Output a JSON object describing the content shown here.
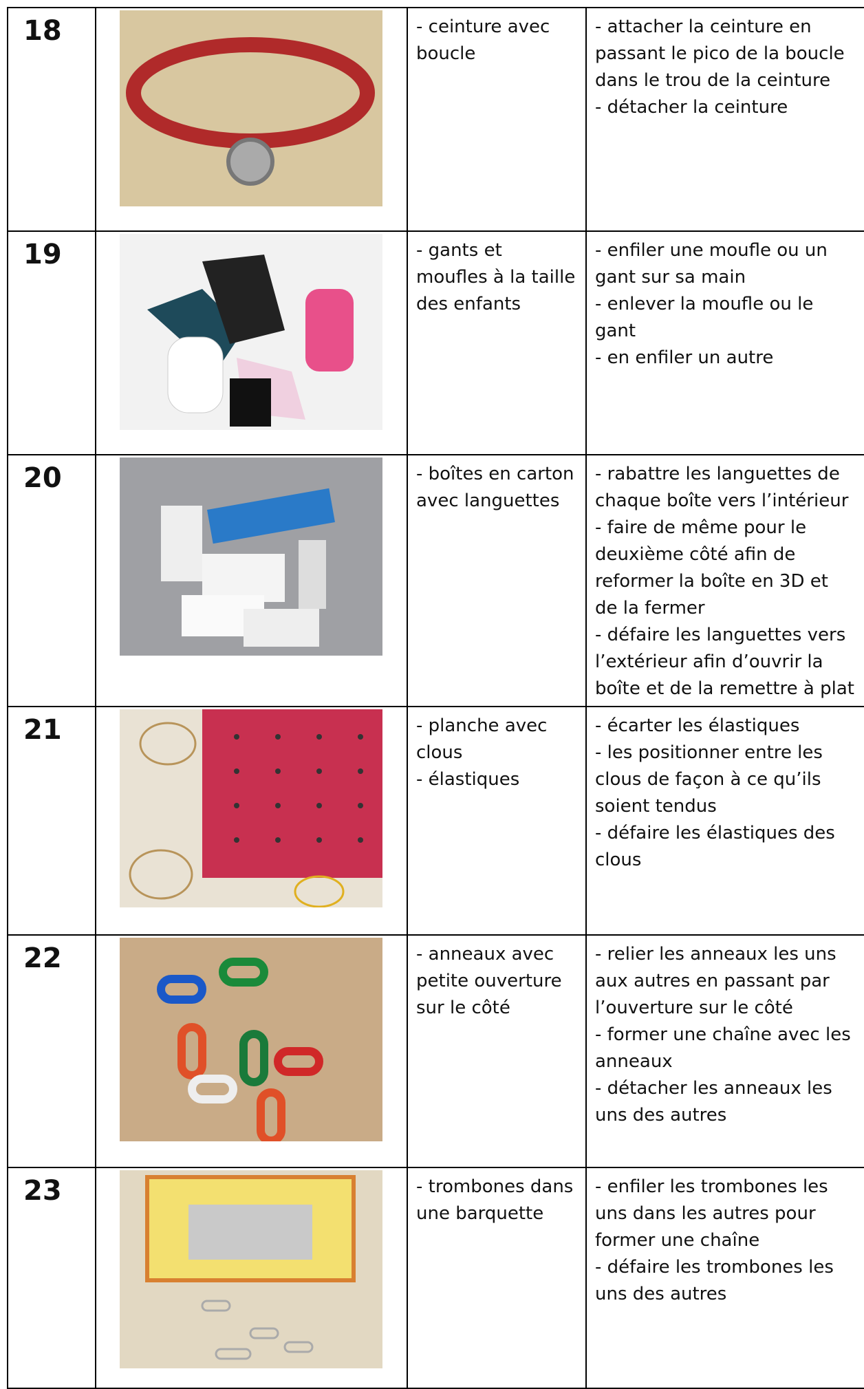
{
  "table": {
    "rows": [
      {
        "number": "18",
        "items": [
          "- ceinture avec boucle"
        ],
        "actions": [
          "- attacher la ceinture en passant le pico de la boucle dans le trou de la ceinture",
          "- détacher la ceinture"
        ]
      },
      {
        "number": "19",
        "items": [
          "- gants et moufles à la taille des enfants"
        ],
        "actions": [
          "- enfiler une moufle ou un gant sur sa main",
          "- enlever la moufle ou le gant",
          "- en enfiler un autre"
        ]
      },
      {
        "number": "20",
        "items": [
          "- boîtes en carton avec languettes"
        ],
        "actions": [
          "- rabattre les languettes de chaque boîte vers l’intérieur",
          "- faire de même pour le deuxième côté afin de reformer la boîte en 3D et de la fermer",
          "- défaire les languettes vers l’extérieur afin d’ouvrir la boîte et de la remettre à plat"
        ]
      },
      {
        "number": "21",
        "items": [
          "- planche avec clous",
          "- élastiques"
        ],
        "actions": [
          "- écarter les élastiques",
          "- les positionner entre les clous de façon à ce qu’ils soient tendus",
          "- défaire les élastiques des clous"
        ]
      },
      {
        "number": "22",
        "items": [
          "- anneaux avec petite ouverture sur le côté"
        ],
        "actions": [
          "- relier les anneaux les uns aux autres en passant par l’ouverture sur le côté",
          "- former une chaîne avec les anneaux",
          "- détacher les anneaux les uns des autres"
        ]
      },
      {
        "number": "23",
        "items": [
          "- trombones dans une barquette"
        ],
        "actions": [
          "- enfiler les trombones les uns dans les autres pour former une chaîne",
          "- défaire les trombones les uns des autres"
        ]
      }
    ]
  }
}
